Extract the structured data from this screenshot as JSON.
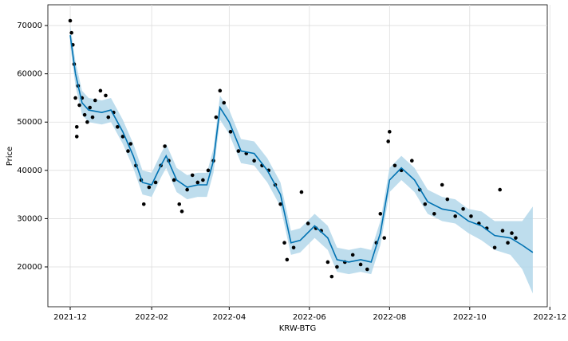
{
  "chart_data": {
    "type": "forecast",
    "xlabel": "KRW-BTG",
    "ylabel": "Price",
    "xlim": [
      "2021-11-14",
      "2022-11-29"
    ],
    "ylim": [
      11750,
      74300
    ],
    "xticks": [
      "2021-12",
      "2022-02",
      "2022-04",
      "2022-06",
      "2022-08",
      "2022-10",
      "2022-12"
    ],
    "yticks": [
      20000,
      30000,
      40000,
      50000,
      60000,
      70000
    ],
    "grid": true,
    "forecast": {
      "color": "#0072b2",
      "band_color": "#b3d7ea",
      "x": [
        "2021-12-01",
        "2021-12-05",
        "2021-12-10",
        "2021-12-15",
        "2021-12-25",
        "2022-01-01",
        "2022-01-10",
        "2022-01-18",
        "2022-01-25",
        "2022-02-01",
        "2022-02-08",
        "2022-02-12",
        "2022-02-20",
        "2022-02-28",
        "2022-03-08",
        "2022-03-15",
        "2022-03-20",
        "2022-03-25",
        "2022-04-01",
        "2022-04-10",
        "2022-04-20",
        "2022-04-30",
        "2022-05-10",
        "2022-05-18",
        "2022-05-25",
        "2022-06-05",
        "2022-06-15",
        "2022-06-22",
        "2022-07-01",
        "2022-07-10",
        "2022-07-18",
        "2022-07-25",
        "2022-08-01",
        "2022-08-10",
        "2022-08-20",
        "2022-08-30",
        "2022-09-10",
        "2022-09-20",
        "2022-09-30",
        "2022-10-10",
        "2022-10-20",
        "2022-11-01",
        "2022-11-10",
        "2022-11-18"
      ],
      "values": [
        68000,
        60000,
        54000,
        52500,
        52000,
        52500,
        48000,
        43000,
        37500,
        37000,
        41000,
        43000,
        38000,
        36500,
        37000,
        37000,
        42000,
        53000,
        50000,
        44000,
        43500,
        40000,
        35000,
        25000,
        25500,
        28500,
        26000,
        21500,
        21000,
        21500,
        21000,
        27000,
        38000,
        40500,
        38000,
        33500,
        32000,
        31500,
        29500,
        28500,
        26500,
        26000,
        24500,
        23000
      ],
      "lower": [
        66000,
        57500,
        51500,
        50000,
        49500,
        50000,
        45500,
        40500,
        35000,
        34500,
        38500,
        40500,
        35500,
        34000,
        34500,
        34500,
        39500,
        50500,
        47500,
        41500,
        41000,
        37500,
        32500,
        22500,
        23000,
        26000,
        23500,
        19000,
        18500,
        19000,
        18500,
        24500,
        35500,
        38000,
        35500,
        31000,
        29500,
        29000,
        27000,
        25500,
        23500,
        22500,
        19500,
        14500
      ],
      "upper": [
        70000,
        62500,
        56500,
        55000,
        54500,
        55000,
        50500,
        45500,
        40000,
        39500,
        43500,
        45500,
        40500,
        39000,
        39500,
        39500,
        44500,
        55500,
        52500,
        46500,
        46000,
        42500,
        37500,
        27500,
        28000,
        31000,
        28500,
        24000,
        23500,
        24000,
        23500,
        29500,
        40500,
        43000,
        40500,
        36000,
        34500,
        34000,
        32000,
        31500,
        29500,
        29500,
        29500,
        32500
      ]
    },
    "observed": {
      "color": "#000000",
      "x": [
        "2021-12-01",
        "2021-12-02",
        "2021-12-03",
        "2021-12-04",
        "2021-12-05",
        "2021-12-06",
        "2021-12-06",
        "2021-12-07",
        "2021-12-08",
        "2021-12-10",
        "2021-12-12",
        "2021-12-14",
        "2021-12-16",
        "2021-12-18",
        "2021-12-20",
        "2021-12-24",
        "2021-12-28",
        "2021-12-30",
        "2022-01-03",
        "2022-01-06",
        "2022-01-10",
        "2022-01-14",
        "2022-01-16",
        "2022-01-20",
        "2022-01-24",
        "2022-01-26",
        "2022-01-30",
        "2022-02-04",
        "2022-02-08",
        "2022-02-11",
        "2022-02-14",
        "2022-02-18",
        "2022-02-22",
        "2022-02-24",
        "2022-02-28",
        "2022-03-04",
        "2022-03-08",
        "2022-03-12",
        "2022-03-16",
        "2022-03-20",
        "2022-03-22",
        "2022-03-25",
        "2022-03-28",
        "2022-04-02",
        "2022-04-08",
        "2022-04-14",
        "2022-04-20",
        "2022-04-26",
        "2022-05-01",
        "2022-05-06",
        "2022-05-10",
        "2022-05-13",
        "2022-05-15",
        "2022-05-20",
        "2022-05-26",
        "2022-05-31",
        "2022-06-06",
        "2022-06-10",
        "2022-06-15",
        "2022-06-18",
        "2022-06-22",
        "2022-06-28",
        "2022-07-04",
        "2022-07-10",
        "2022-07-15",
        "2022-07-22",
        "2022-07-25",
        "2022-07-28",
        "2022-07-31",
        "2022-08-01",
        "2022-08-05",
        "2022-08-10",
        "2022-08-18",
        "2022-08-24",
        "2022-08-28",
        "2022-09-04",
        "2022-09-10",
        "2022-09-14",
        "2022-09-20",
        "2022-09-26",
        "2022-10-02",
        "2022-10-08",
        "2022-10-14",
        "2022-10-20",
        "2022-10-24",
        "2022-10-26",
        "2022-10-30",
        "2022-11-02",
        "2022-11-05"
      ],
      "values": [
        71000,
        68500,
        66000,
        62000,
        55000,
        49000,
        47000,
        57500,
        53500,
        55000,
        51500,
        50000,
        53000,
        51000,
        54500,
        56500,
        55500,
        51000,
        52000,
        49000,
        47000,
        44000,
        45500,
        41000,
        38000,
        33000,
        36500,
        37500,
        41000,
        45000,
        42000,
        38000,
        33000,
        31500,
        36000,
        39000,
        37500,
        38000,
        40000,
        42000,
        51000,
        56500,
        54000,
        48000,
        44000,
        43500,
        42000,
        41000,
        40000,
        37000,
        33000,
        25000,
        21500,
        24000,
        35500,
        29000,
        28000,
        27500,
        21000,
        18000,
        20000,
        21000,
        22500,
        20500,
        19500,
        25000,
        31000,
        26000,
        46000,
        48000,
        41000,
        40000,
        42000,
        36000,
        33000,
        31000,
        37000,
        34000,
        30500,
        32000,
        30500,
        29000,
        28000,
        24000,
        36000,
        27500,
        25000,
        27000,
        26000
      ]
    }
  }
}
